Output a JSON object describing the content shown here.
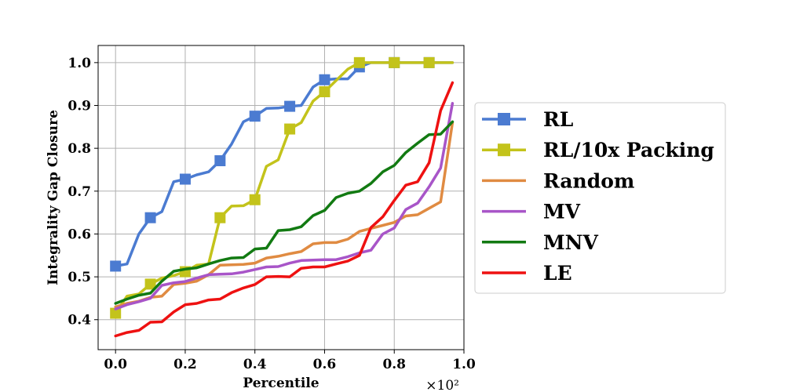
{
  "chart_data": {
    "type": "line",
    "title": "",
    "xlabel": "Percentile",
    "ylabel": "Integrality Gap Closure",
    "x_offset_label": "×10²",
    "xlim": [
      -0.05,
      1.0
    ],
    "ylim": [
      0.33,
      1.04
    ],
    "xticks": [
      0.0,
      0.2,
      0.4,
      0.6,
      0.8,
      1.0
    ],
    "xtick_labels": [
      "0.0",
      "0.2",
      "0.4",
      "0.6",
      "0.8",
      "1.0"
    ],
    "yticks": [
      0.4,
      0.5,
      0.6,
      0.7,
      0.8,
      0.9,
      1.0
    ],
    "ytick_labels": [
      "0.4",
      "0.5",
      "0.6",
      "0.7",
      "0.8",
      "0.9",
      "1.0"
    ],
    "grid": true,
    "legend_position": "outside-right",
    "series": [
      {
        "name": "RL",
        "color": "#4b7bd1",
        "marker": "square",
        "x": [
          0.0,
          0.033,
          0.067,
          0.1,
          0.133,
          0.167,
          0.2,
          0.233,
          0.267,
          0.3,
          0.333,
          0.367,
          0.4,
          0.433,
          0.467,
          0.5,
          0.533,
          0.567,
          0.6,
          0.633,
          0.667,
          0.7,
          0.733,
          0.767,
          0.8,
          0.833,
          0.867,
          0.9,
          0.933,
          0.967
        ],
        "y": [
          0.525,
          0.53,
          0.6,
          0.638,
          0.652,
          0.722,
          0.728,
          0.738,
          0.745,
          0.771,
          0.81,
          0.862,
          0.875,
          0.893,
          0.894,
          0.898,
          0.9,
          0.943,
          0.96,
          0.962,
          0.962,
          0.99,
          1.0,
          1.0,
          1.0,
          1.0,
          1.0,
          1.0,
          1.0,
          1.0
        ],
        "marker_x": [
          0.0,
          0.1,
          0.2,
          0.3,
          0.4,
          0.5,
          0.6,
          0.7,
          0.8,
          0.9
        ]
      },
      {
        "name": "RL/10x Packing",
        "color": "#c3c31b",
        "marker": "square",
        "x": [
          0.0,
          0.033,
          0.067,
          0.1,
          0.133,
          0.167,
          0.2,
          0.233,
          0.267,
          0.3,
          0.333,
          0.367,
          0.4,
          0.433,
          0.467,
          0.5,
          0.533,
          0.567,
          0.6,
          0.633,
          0.667,
          0.7,
          0.733,
          0.767,
          0.8,
          0.833,
          0.867,
          0.9,
          0.933,
          0.967
        ],
        "y": [
          0.415,
          0.455,
          0.46,
          0.483,
          0.497,
          0.503,
          0.512,
          0.527,
          0.53,
          0.638,
          0.665,
          0.666,
          0.68,
          0.758,
          0.773,
          0.845,
          0.86,
          0.91,
          0.932,
          0.958,
          0.985,
          1.0,
          1.0,
          1.0,
          1.0,
          1.0,
          1.0,
          1.0,
          1.0,
          1.0
        ],
        "marker_x": [
          0.0,
          0.1,
          0.2,
          0.3,
          0.4,
          0.5,
          0.6,
          0.7,
          0.8,
          0.9
        ]
      },
      {
        "name": "Random",
        "color": "#e08b42",
        "marker": "none",
        "x": [
          0.0,
          0.033,
          0.067,
          0.1,
          0.133,
          0.167,
          0.2,
          0.233,
          0.267,
          0.3,
          0.333,
          0.367,
          0.4,
          0.433,
          0.467,
          0.5,
          0.533,
          0.567,
          0.6,
          0.633,
          0.667,
          0.7,
          0.733,
          0.767,
          0.8,
          0.833,
          0.867,
          0.9,
          0.933,
          0.967
        ],
        "y": [
          0.43,
          0.438,
          0.443,
          0.452,
          0.455,
          0.482,
          0.485,
          0.49,
          0.505,
          0.527,
          0.528,
          0.529,
          0.532,
          0.544,
          0.548,
          0.554,
          0.559,
          0.577,
          0.58,
          0.58,
          0.588,
          0.606,
          0.613,
          0.62,
          0.627,
          0.642,
          0.645,
          0.66,
          0.675,
          0.86
        ]
      },
      {
        "name": "MV",
        "color": "#a855c8",
        "marker": "none",
        "x": [
          0.0,
          0.033,
          0.067,
          0.1,
          0.133,
          0.167,
          0.2,
          0.233,
          0.267,
          0.3,
          0.333,
          0.367,
          0.4,
          0.433,
          0.467,
          0.5,
          0.533,
          0.567,
          0.6,
          0.633,
          0.667,
          0.7,
          0.733,
          0.767,
          0.8,
          0.833,
          0.867,
          0.9,
          0.933,
          0.967
        ],
        "y": [
          0.425,
          0.435,
          0.442,
          0.45,
          0.48,
          0.486,
          0.489,
          0.497,
          0.505,
          0.506,
          0.507,
          0.511,
          0.517,
          0.523,
          0.524,
          0.532,
          0.538,
          0.539,
          0.54,
          0.54,
          0.547,
          0.556,
          0.562,
          0.6,
          0.614,
          0.657,
          0.672,
          0.71,
          0.754,
          0.905
        ]
      },
      {
        "name": "MNV",
        "color": "#127a12",
        "marker": "none",
        "x": [
          0.0,
          0.033,
          0.067,
          0.1,
          0.133,
          0.167,
          0.2,
          0.233,
          0.267,
          0.3,
          0.333,
          0.367,
          0.4,
          0.433,
          0.467,
          0.5,
          0.533,
          0.567,
          0.6,
          0.633,
          0.667,
          0.7,
          0.733,
          0.767,
          0.8,
          0.833,
          0.867,
          0.9,
          0.933,
          0.967
        ],
        "y": [
          0.438,
          0.448,
          0.457,
          0.462,
          0.49,
          0.513,
          0.518,
          0.521,
          0.53,
          0.538,
          0.544,
          0.545,
          0.565,
          0.567,
          0.608,
          0.61,
          0.617,
          0.643,
          0.655,
          0.685,
          0.695,
          0.7,
          0.718,
          0.745,
          0.76,
          0.79,
          0.812,
          0.832,
          0.833,
          0.862
        ]
      },
      {
        "name": "LE",
        "color": "#ee1111",
        "marker": "none",
        "x": [
          0.0,
          0.033,
          0.067,
          0.1,
          0.133,
          0.167,
          0.2,
          0.233,
          0.267,
          0.3,
          0.333,
          0.367,
          0.4,
          0.433,
          0.467,
          0.5,
          0.533,
          0.567,
          0.6,
          0.633,
          0.667,
          0.7,
          0.733,
          0.767,
          0.8,
          0.833,
          0.867,
          0.9,
          0.933,
          0.967
        ],
        "y": [
          0.362,
          0.37,
          0.375,
          0.394,
          0.395,
          0.418,
          0.435,
          0.438,
          0.446,
          0.448,
          0.463,
          0.474,
          0.482,
          0.5,
          0.501,
          0.5,
          0.52,
          0.523,
          0.523,
          0.53,
          0.537,
          0.55,
          0.615,
          0.64,
          0.678,
          0.714,
          0.722,
          0.766,
          0.888,
          0.953
        ]
      }
    ]
  }
}
